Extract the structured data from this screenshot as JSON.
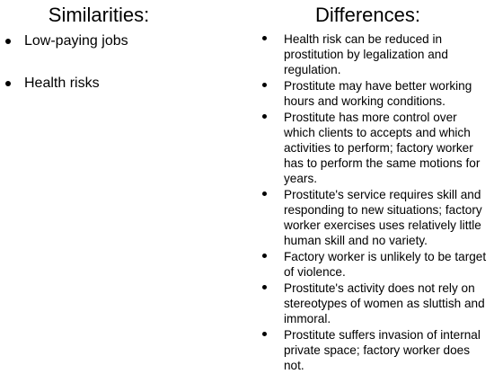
{
  "left": {
    "heading": "Similarities:",
    "items": [
      "Low-paying jobs",
      "Health risks"
    ]
  },
  "right": {
    "heading": "Differences:",
    "items": [
      "Health risk can be reduced in prostitution by legalization and regulation.",
      "Prostitute may have better working hours and working conditions.",
      "Prostitute has more control over which clients to accepts and which activities to perform; factory worker has to perform the same motions for years.",
      "Prostitute's service requires skill and responding to new situations; factory worker exercises uses relatively little human skill and no variety.",
      "Factory worker is unlikely to be target of violence.",
      "Prostitute's activity does not rely on stereotypes of women as sluttish and immoral.",
      "Prostitute suffers invasion of internal private space; factory worker does not."
    ]
  }
}
